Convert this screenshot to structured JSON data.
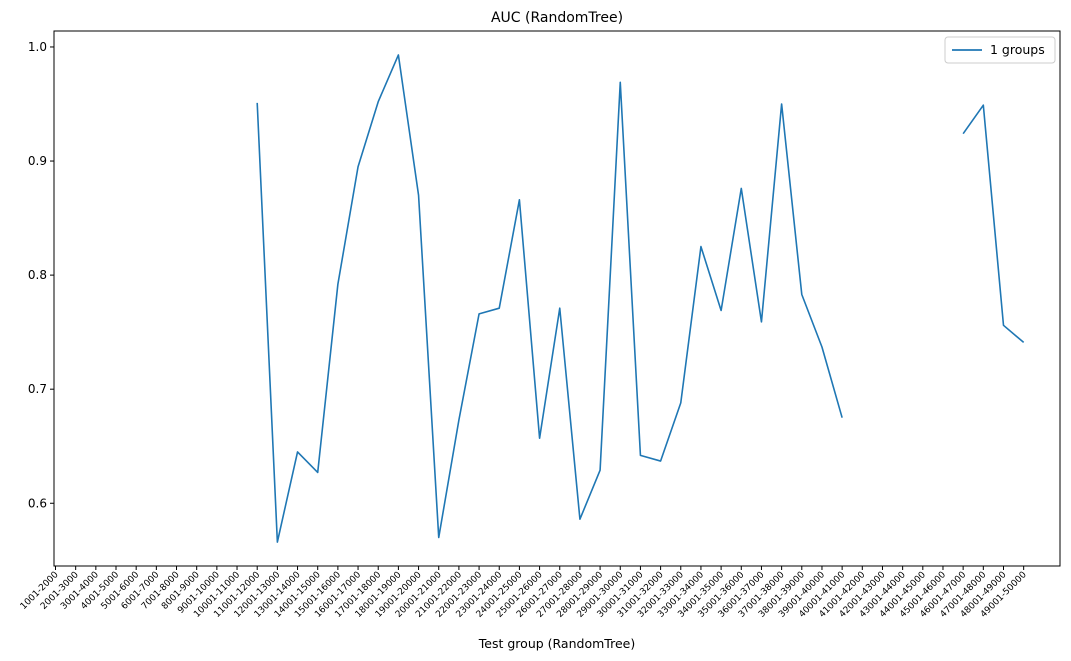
{
  "chart_data": {
    "type": "line",
    "title": "AUC (RandomTree)",
    "xlabel": "Test group (RandomTree)",
    "ylabel": "",
    "categories": [
      "1001-2000",
      "2001-3000",
      "3001-4000",
      "4001-5000",
      "5001-6000",
      "6001-7000",
      "7001-8000",
      "8001-9000",
      "9001-10000",
      "10001-11000",
      "11001-12000",
      "12001-13000",
      "13001-14000",
      "14001-15000",
      "15001-16000",
      "16001-17000",
      "17001-18000",
      "18001-19000",
      "19001-20000",
      "20001-21000",
      "21001-22000",
      "22001-23000",
      "23001-24000",
      "24001-25000",
      "25001-26000",
      "26001-27000",
      "27001-28000",
      "28001-29000",
      "29001-30000",
      "30001-31000",
      "31001-32000",
      "32001-33000",
      "33001-34000",
      "34001-35000",
      "35001-36000",
      "36001-37000",
      "37001-38000",
      "38001-39000",
      "39001-40000",
      "40001-41000",
      "41001-42000",
      "42001-43000",
      "43001-44000",
      "44001-45000",
      "45001-46000",
      "46001-47000",
      "47001-48000",
      "48001-49000",
      "49001-50000"
    ],
    "series": [
      {
        "name": "1 groups",
        "color": "#1f77b4",
        "values": [
          null,
          null,
          null,
          null,
          null,
          null,
          null,
          null,
          null,
          null,
          0.951,
          0.566,
          0.645,
          0.627,
          0.792,
          0.895,
          0.952,
          0.993,
          0.87,
          0.57,
          0.673,
          0.766,
          0.771,
          0.866,
          0.657,
          0.771,
          0.586,
          0.629,
          0.969,
          0.642,
          0.637,
          0.688,
          0.825,
          0.769,
          0.876,
          0.759,
          0.95,
          0.783,
          0.737,
          0.675,
          null,
          null,
          null,
          null,
          null,
          0.924,
          0.949,
          0.756,
          0.741
        ]
      }
    ],
    "yticks": [
      0.6,
      0.7,
      0.8,
      0.9,
      1.0
    ],
    "ytick_labels": [
      "0.6",
      "0.7",
      "0.8",
      "0.9",
      "1.0"
    ],
    "ylim": [
      0.545,
      1.014
    ],
    "legend_position": "top-right",
    "grid": false
  }
}
